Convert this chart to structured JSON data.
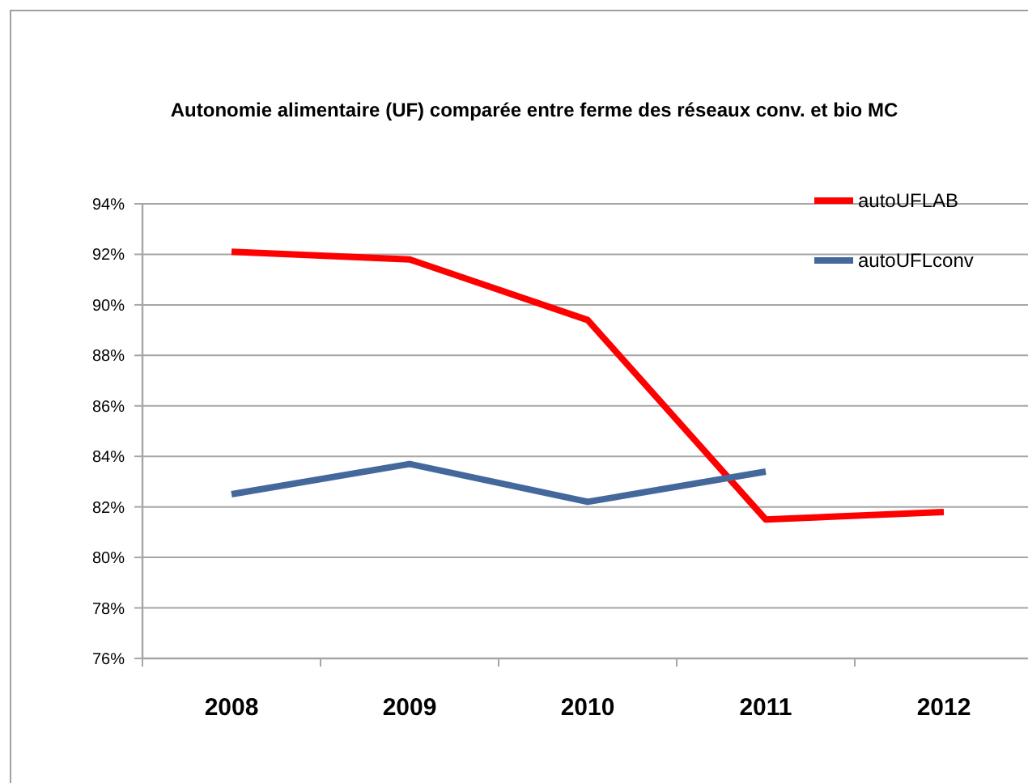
{
  "chart_data": {
    "type": "line",
    "title": "Autonomie alimentaire (UF) comparée entre ferme des réseaux conv. et bio MC",
    "categories": [
      "2008",
      "2009",
      "2010",
      "2011",
      "2012"
    ],
    "series": [
      {
        "name": "autoUFLAB",
        "color": "#ff0000",
        "values": [
          92.1,
          91.8,
          89.4,
          81.5,
          81.8
        ]
      },
      {
        "name": "autoUFLconv",
        "color": "#44689c",
        "values": [
          82.5,
          83.7,
          82.2,
          83.4,
          null
        ]
      }
    ],
    "ylim": [
      76,
      94
    ],
    "yticks": [
      {
        "value": 76,
        "label": "76%"
      },
      {
        "value": 78,
        "label": "78%"
      },
      {
        "value": 80,
        "label": "80%"
      },
      {
        "value": 82,
        "label": "82%"
      },
      {
        "value": 84,
        "label": "84%"
      },
      {
        "value": 86,
        "label": "86%"
      },
      {
        "value": 88,
        "label": "88%"
      },
      {
        "value": 90,
        "label": "90%"
      },
      {
        "value": 92,
        "label": "92%"
      },
      {
        "value": 94,
        "label": "94%"
      }
    ],
    "grid": "y",
    "legend": "top right"
  }
}
